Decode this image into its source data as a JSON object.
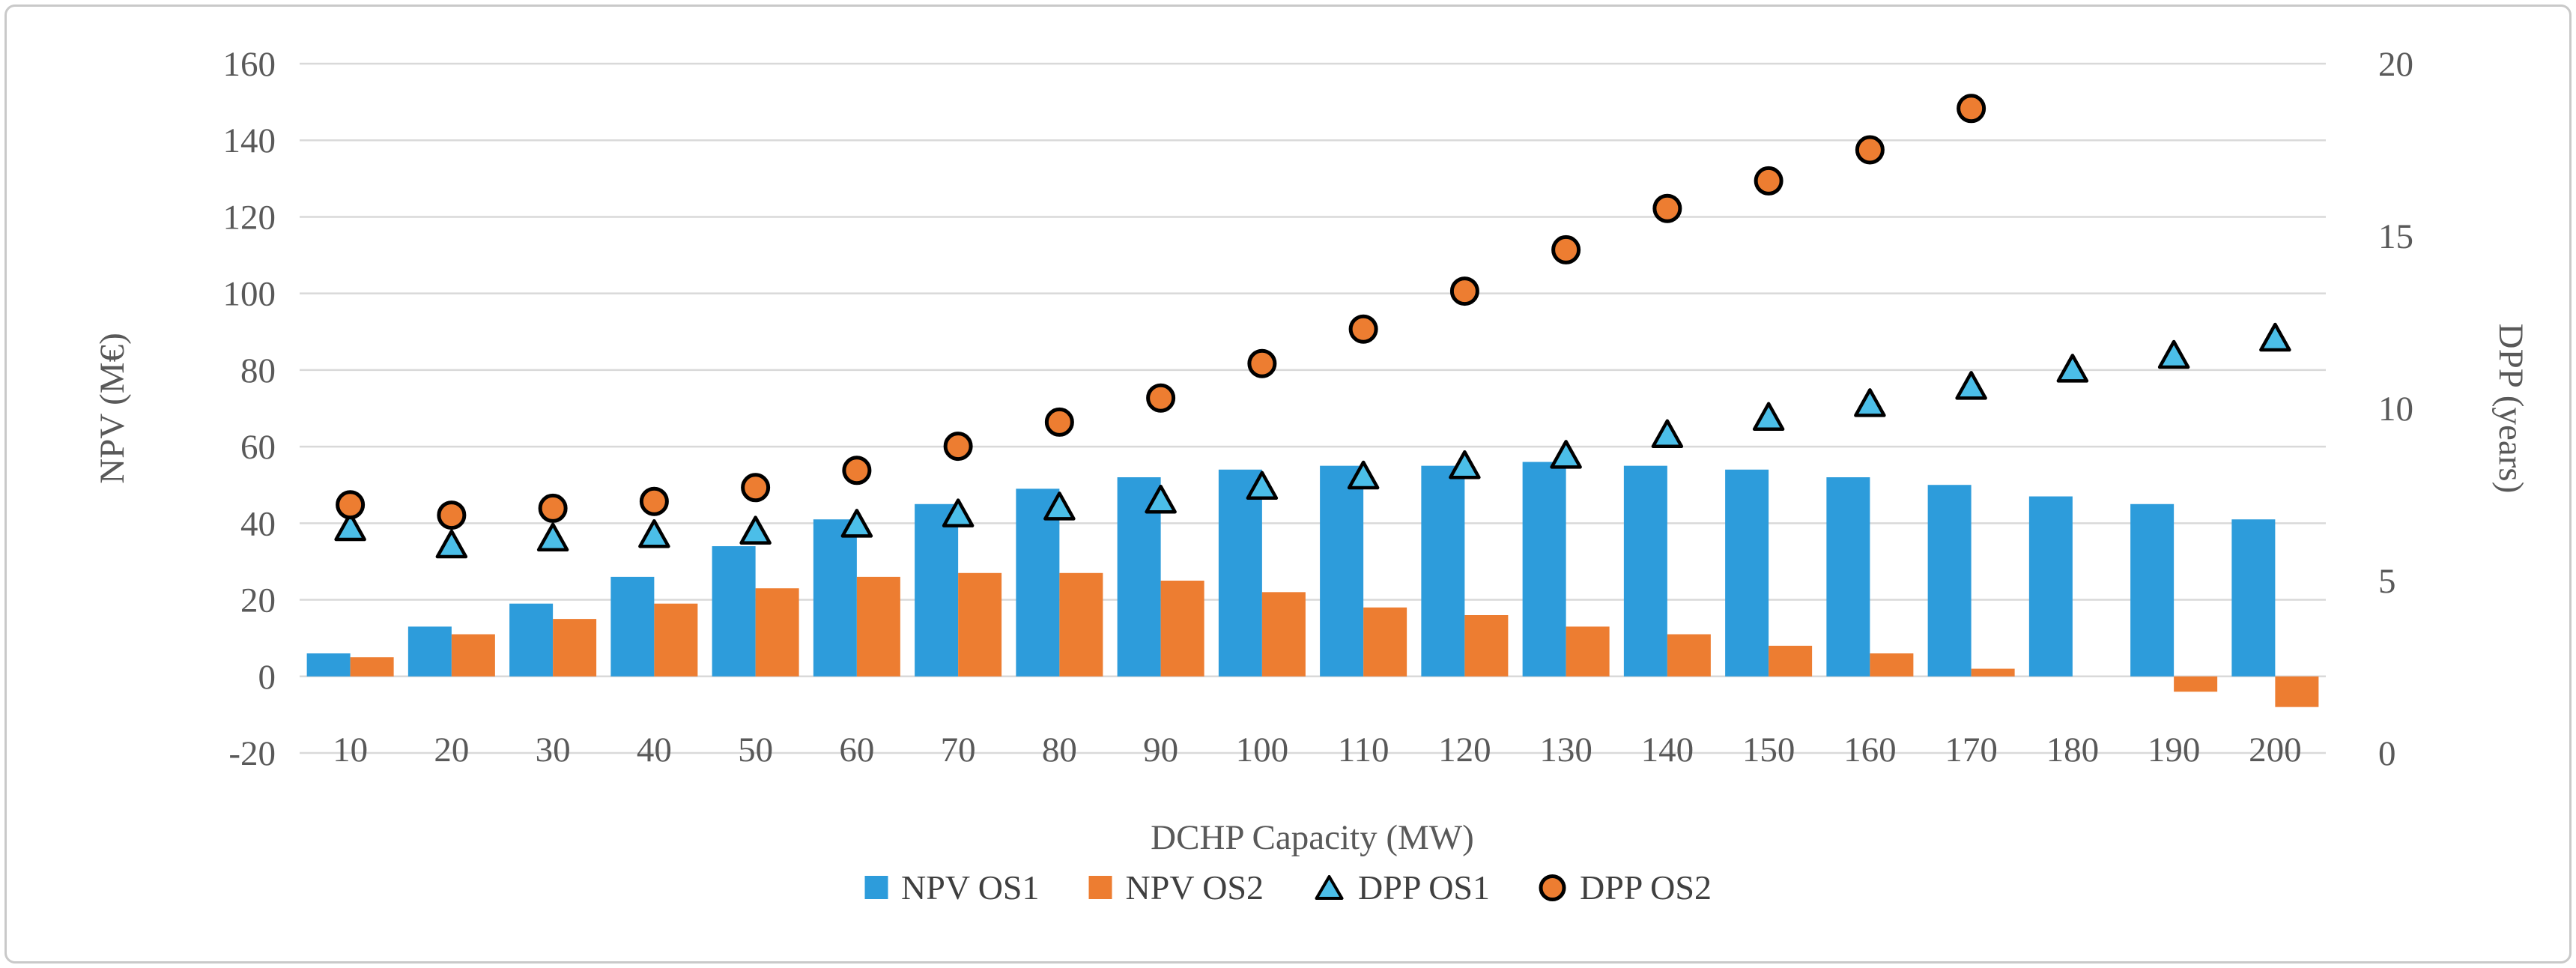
{
  "figure": {
    "background": "#ffffff",
    "border_color": "#c9c9c9",
    "text_color": "#595959",
    "gridline_color": "#d9d9d9"
  },
  "chart_data": {
    "type": "bar",
    "subtype": "combo-bar-scatter",
    "title": "",
    "xlabel": "DCHP Capacity (MW)",
    "x_categories": [
      10,
      20,
      30,
      40,
      50,
      60,
      70,
      80,
      90,
      100,
      110,
      120,
      130,
      140,
      150,
      160,
      170,
      180,
      190,
      200
    ],
    "left_axis": {
      "label": "NPV (M€)",
      "min": -20,
      "max": 160,
      "ticks": [
        -20,
        0,
        20,
        40,
        60,
        80,
        100,
        120,
        140,
        160
      ]
    },
    "right_axis": {
      "label": "DPP (years)",
      "min": 0,
      "max": 20,
      "ticks": [
        0,
        5,
        10,
        15,
        20
      ]
    },
    "grid": true,
    "legend_position": "bottom",
    "series": [
      {
        "name": "NPV OS1",
        "type": "bar",
        "axis": "left",
        "color": "#2D9CDB",
        "values": [
          6,
          13,
          19,
          26,
          34,
          41,
          45,
          49,
          52,
          54,
          55,
          55,
          56,
          55,
          54,
          52,
          50,
          47,
          45,
          41
        ]
      },
      {
        "name": "NPV OS2",
        "type": "bar",
        "axis": "left",
        "color": "#ED7D31",
        "values": [
          5,
          11,
          15,
          19,
          23,
          26,
          27,
          27,
          25,
          22,
          18,
          16,
          13,
          11,
          8,
          6,
          2,
          0,
          -4,
          -8
        ]
      },
      {
        "name": "DPP OS1",
        "type": "scatter",
        "marker": "triangle",
        "axis": "right",
        "fill": "#4BBEE8",
        "stroke": "#000000",
        "values": [
          6.5,
          6.0,
          6.2,
          6.3,
          6.4,
          6.6,
          6.9,
          7.1,
          7.3,
          7.7,
          8.0,
          8.3,
          8.6,
          9.2,
          9.7,
          10.1,
          10.6,
          11.1,
          11.5,
          12.0
        ]
      },
      {
        "name": "DPP OS2",
        "type": "scatter",
        "marker": "circle",
        "axis": "right",
        "fill": "#ED7D31",
        "stroke": "#000000",
        "values": [
          7.2,
          6.9,
          7.1,
          7.3,
          7.7,
          8.2,
          8.9,
          9.6,
          10.3,
          11.3,
          12.3,
          13.4,
          14.6,
          15.8,
          16.6,
          17.5,
          18.7,
          null,
          null,
          null
        ]
      }
    ]
  }
}
